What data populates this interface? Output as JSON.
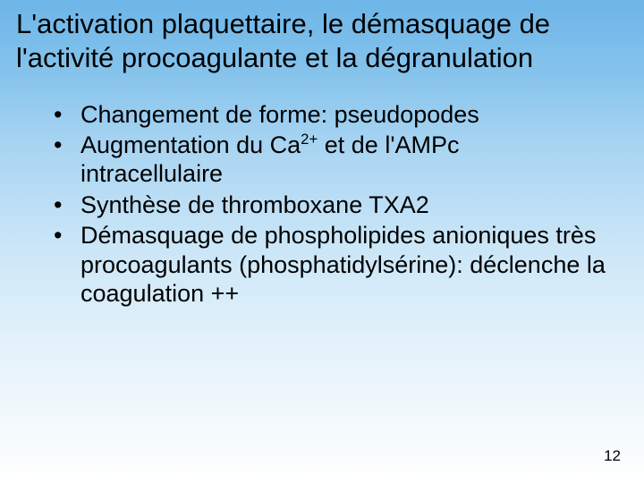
{
  "background": {
    "gradient_top": "#6db5e8",
    "gradient_bottom": "#ffffff"
  },
  "title_line1": "L'activation plaquettaire, le démasquage de",
  "title_line2": "l'activité procoagulante et la dégranulation",
  "title_fontsize": 31,
  "bullet_fontsize": 27,
  "text_color": "#000000",
  "bullets": [
    {
      "text": "Changement de forme: pseudopodes"
    },
    {
      "pre": "Augmentation du Ca",
      "sup": "2+",
      "post": " et de l'AMPc intracellulaire"
    },
    {
      "text": "Synthèse de thromboxane TXA2"
    },
    {
      "text": "Démasquage de phospholipides anioniques très procoagulants (phosphatidylsérine): déclenche la coagulation ++"
    }
  ],
  "page_number": "12",
  "page_number_fontsize": 17
}
